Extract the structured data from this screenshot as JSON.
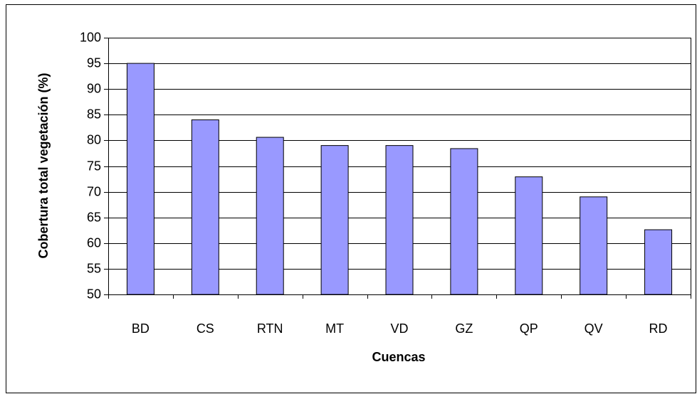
{
  "chart_data": {
    "type": "bar",
    "categories": [
      "BD",
      "CS",
      "RTN",
      "MT",
      "VD",
      "GZ",
      "QP",
      "QV",
      "RD"
    ],
    "values": [
      95,
      84,
      80.6,
      79,
      79,
      78.4,
      72.9,
      69,
      62.6
    ],
    "color": "#9999ff",
    "x_label": "Cuencas",
    "y_label": "Cobertura total vegetación (%)",
    "ylim": [
      50,
      100
    ],
    "yticks": [
      50,
      55,
      60,
      65,
      70,
      75,
      80,
      85,
      90,
      95,
      100
    ],
    "grid": true
  }
}
